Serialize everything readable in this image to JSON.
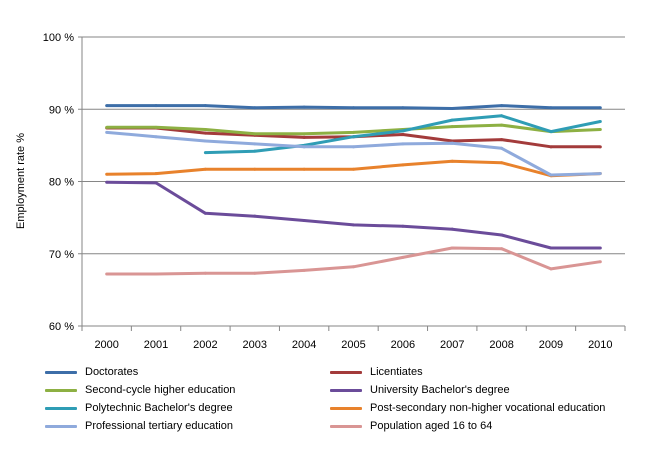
{
  "chart_data": {
    "type": "line",
    "title": "",
    "xlabel": "",
    "ylabel": "Employment rate %",
    "ylim": [
      60,
      100
    ],
    "yticks": [
      "60 %",
      "70 %",
      "80 %",
      "90 %",
      "100 %"
    ],
    "grid": true,
    "legend_position": "bottom",
    "categories": [
      "2000",
      "2001",
      "2002",
      "2003",
      "2004",
      "2005",
      "2006",
      "2007",
      "2008",
      "2009",
      "2010"
    ],
    "series": [
      {
        "name": "Doctorates",
        "color": "#3d6ea8",
        "values": [
          90.5,
          90.5,
          90.5,
          90.2,
          90.3,
          90.2,
          90.2,
          90.1,
          90.5,
          90.2,
          90.2
        ]
      },
      {
        "name": "Licentiates",
        "color": "#a33b3b",
        "values": [
          87.4,
          87.4,
          86.7,
          86.4,
          86.1,
          86.2,
          86.5,
          85.6,
          85.8,
          84.8,
          84.8
        ]
      },
      {
        "name": "Second-cycle higher education",
        "color": "#8db043",
        "values": [
          87.5,
          87.5,
          87.2,
          86.6,
          86.6,
          86.8,
          87.2,
          87.6,
          87.8,
          86.9,
          87.2
        ]
      },
      {
        "name": "University Bachelor's degree",
        "color": "#6b4c9a",
        "values": [
          79.9,
          79.8,
          75.6,
          75.2,
          74.6,
          74.0,
          73.8,
          73.4,
          72.6,
          70.8,
          70.8
        ]
      },
      {
        "name": "Polytechnic Bachelor's degree",
        "color": "#2f9db5",
        "values": [
          null,
          null,
          84.0,
          84.2,
          85.0,
          86.2,
          87.0,
          88.5,
          89.1,
          86.9,
          88.3
        ]
      },
      {
        "name": "Post-secondary non-higher vocational education",
        "color": "#e8822c",
        "values": [
          81.0,
          81.1,
          81.7,
          81.7,
          81.7,
          81.7,
          82.3,
          82.8,
          82.6,
          80.8,
          81.1
        ]
      },
      {
        "name": "Professional tertiary education",
        "color": "#8faadc",
        "values": [
          86.8,
          86.2,
          85.6,
          85.2,
          84.8,
          84.8,
          85.2,
          85.3,
          84.6,
          80.9,
          81.1
        ]
      },
      {
        "name": "Population aged 16 to 64",
        "color": "#d99594",
        "values": [
          67.2,
          67.2,
          67.3,
          67.3,
          67.7,
          68.2,
          69.5,
          70.8,
          70.7,
          67.9,
          68.9
        ]
      }
    ]
  }
}
